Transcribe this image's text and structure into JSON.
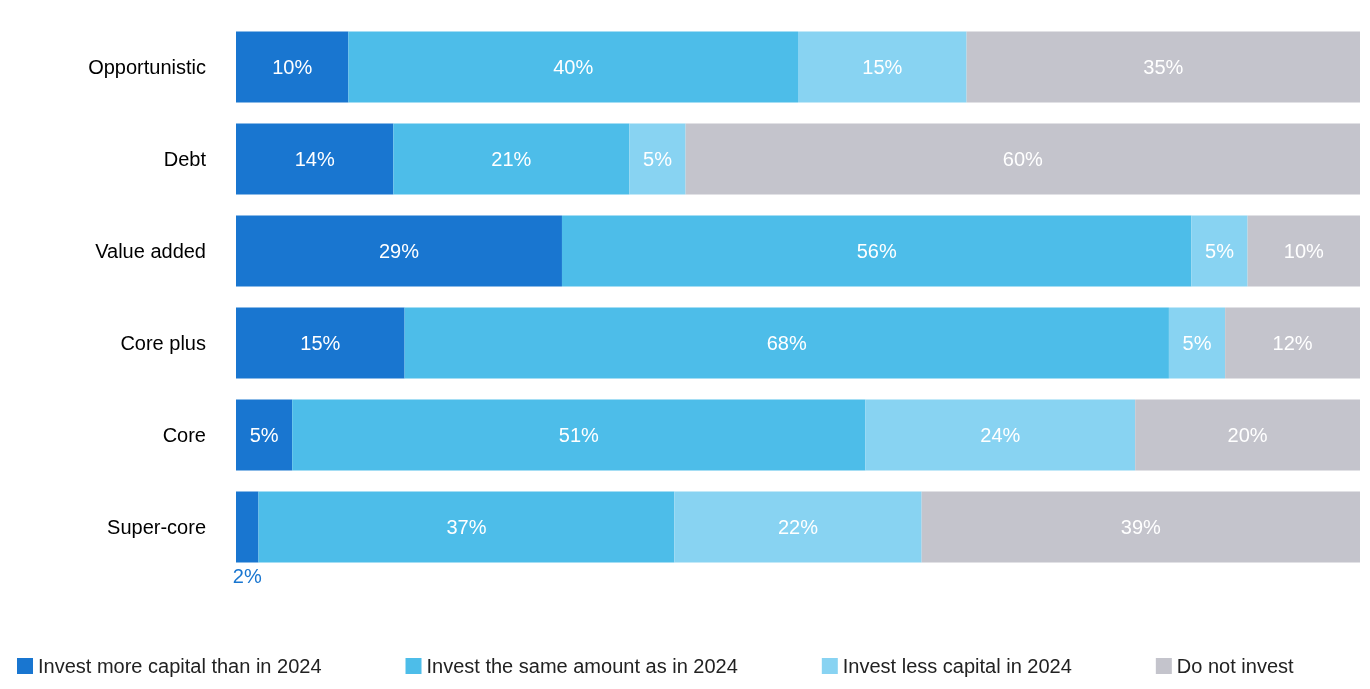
{
  "chart_data": {
    "type": "bar",
    "orientation": "horizontal",
    "stacked": true,
    "legend": "bottom",
    "categories": [
      "Opportunistic",
      "Debt",
      "Value added",
      "Core plus",
      "Core",
      "Super-core"
    ],
    "series": [
      {
        "name": "Invest more capital than in 2024",
        "color": "#1976d0",
        "values": [
          10,
          14,
          29,
          15,
          5,
          2
        ],
        "value_labels": [
          "10%",
          "14%",
          "29%",
          "15%",
          "5%",
          "2%"
        ]
      },
      {
        "name": "Invest the same amount as in 2024",
        "color": "#4dbde9",
        "values": [
          40,
          21,
          56,
          68,
          51,
          37
        ],
        "value_labels": [
          "40%",
          "21%",
          "56%",
          "68%",
          "51%",
          "37%"
        ]
      },
      {
        "name": "Invest less capital in 2024",
        "color": "#88d3f2",
        "values": [
          15,
          5,
          5,
          5,
          24,
          22
        ],
        "value_labels": [
          "15%",
          "5%",
          "5%",
          "5%",
          "24%",
          "22%"
        ]
      },
      {
        "name": "Do not invest",
        "color": "#c4c4cc",
        "values": [
          35,
          60,
          10,
          12,
          20,
          39
        ],
        "value_labels": [
          "35%",
          "60%",
          "10%",
          "12%",
          "20%",
          "39%"
        ]
      }
    ]
  }
}
